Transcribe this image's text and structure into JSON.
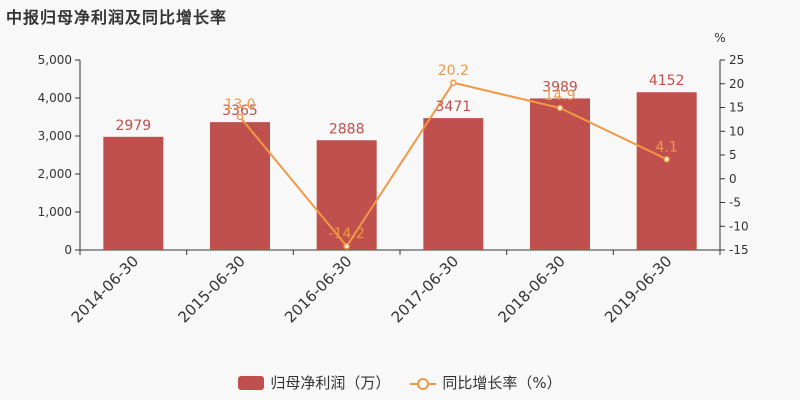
{
  "title": "中报归母净利润及同比增长率",
  "chart_data": {
    "type": "bar+line",
    "categories": [
      "2014-06-30",
      "2015-06-30",
      "2016-06-30",
      "2017-06-30",
      "2018-06-30",
      "2019-06-30"
    ],
    "series": [
      {
        "name": "归母净利润（万）",
        "type": "bar",
        "axis": "left",
        "color": "#c0504d",
        "values": [
          2979,
          3365,
          2888,
          3471,
          3989,
          4152
        ]
      },
      {
        "name": "同比增长率（%）",
        "type": "line",
        "axis": "right",
        "color": "#f09845",
        "values": [
          null,
          13.0,
          -14.2,
          20.2,
          14.9,
          4.1
        ]
      }
    ],
    "y_left": {
      "min": 0,
      "max": 5000,
      "ticks": [
        0,
        1000,
        2000,
        3000,
        4000,
        5000
      ],
      "tick_labels": [
        "0",
        "1,000",
        "2,000",
        "3,000",
        "4,000",
        "5,000"
      ]
    },
    "y_right": {
      "label": "%",
      "min": -15,
      "max": 25,
      "ticks": [
        -15,
        -10,
        -5,
        0,
        5,
        10,
        15,
        20,
        25
      ]
    },
    "bar_labels": [
      "2979",
      "3365",
      "2888",
      "3471",
      "3989",
      "4152"
    ],
    "line_labels": [
      "",
      "13.0",
      "-14.2",
      "20.2",
      "14.9",
      "4.1"
    ],
    "legend": {
      "position": "bottom-center",
      "items": [
        "归母净利润（万）",
        "同比增长率（%）"
      ]
    },
    "grid": false
  }
}
